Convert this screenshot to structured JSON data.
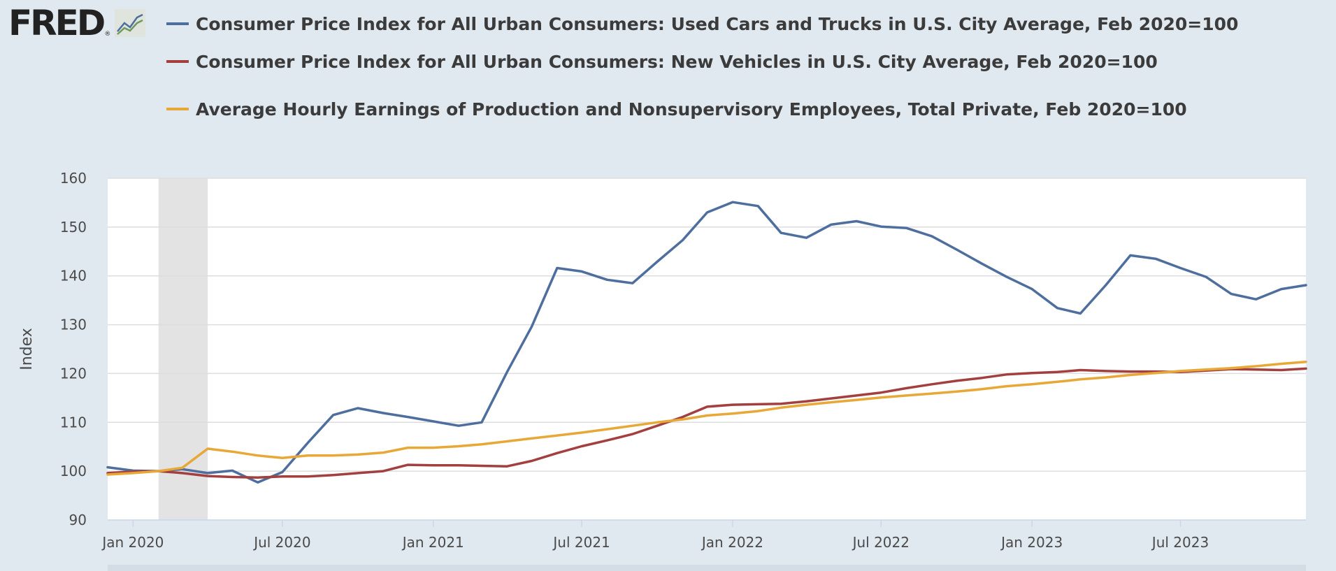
{
  "logo": {
    "text": "FRED",
    "reg": "®"
  },
  "colors": {
    "background": "#e1e9f0",
    "plot_bg": "#ffffff",
    "recession": "#e3e3e3",
    "grid": "#dddddd"
  },
  "chart_data": {
    "type": "line",
    "ylabel": "Index",
    "ylim": [
      90,
      160
    ],
    "yticks": [
      90,
      100,
      110,
      120,
      130,
      140,
      150,
      160
    ],
    "xlim": [
      "2019-12-01",
      "2023-12-01"
    ],
    "xticks": [
      {
        "date": "2020-01-01",
        "label": "Jan 2020"
      },
      {
        "date": "2020-07-01",
        "label": "Jul 2020"
      },
      {
        "date": "2021-01-01",
        "label": "Jan 2021"
      },
      {
        "date": "2021-07-01",
        "label": "Jul 2021"
      },
      {
        "date": "2022-01-01",
        "label": "Jan 2022"
      },
      {
        "date": "2022-07-01",
        "label": "Jul 2022"
      },
      {
        "date": "2023-01-01",
        "label": "Jan 2023"
      },
      {
        "date": "2023-07-01",
        "label": "Jul 2023"
      }
    ],
    "recession": {
      "start": "2020-02-01",
      "end": "2020-04-01"
    },
    "legend_position": "top",
    "x": [
      "2019-12",
      "2020-01",
      "2020-02",
      "2020-03",
      "2020-04",
      "2020-05",
      "2020-06",
      "2020-07",
      "2020-08",
      "2020-09",
      "2020-10",
      "2020-11",
      "2020-12",
      "2021-01",
      "2021-02",
      "2021-03",
      "2021-04",
      "2021-05",
      "2021-06",
      "2021-07",
      "2021-08",
      "2021-09",
      "2021-10",
      "2021-11",
      "2021-12",
      "2022-01",
      "2022-02",
      "2022-03",
      "2022-04",
      "2022-05",
      "2022-06",
      "2022-07",
      "2022-08",
      "2022-09",
      "2022-10",
      "2022-11",
      "2022-12",
      "2023-01",
      "2023-02",
      "2023-03",
      "2023-04",
      "2023-05",
      "2023-06",
      "2023-07",
      "2023-08",
      "2023-09",
      "2023-10",
      "2023-11",
      "2023-12"
    ],
    "series": [
      {
        "name": "Consumer Price Index for All Urban Consumers: Used Cars and Trucks in U.S. City Average, Feb 2020=100",
        "color": "#4e6e9e",
        "values": [
          100.8,
          100.1,
          100.0,
          100.4,
          99.6,
          100.1,
          97.7,
          99.8,
          105.8,
          111.5,
          112.9,
          111.9,
          111.1,
          110.2,
          109.3,
          110.0,
          120.3,
          129.6,
          141.6,
          140.9,
          139.2,
          138.5,
          142.9,
          147.3,
          153.0,
          155.1,
          154.3,
          148.8,
          147.8,
          150.5,
          151.2,
          150.1,
          149.8,
          148.1,
          145.4,
          142.5,
          139.8,
          137.3,
          133.4,
          132.3,
          138.1,
          144.2,
          143.5,
          141.6,
          139.8,
          136.3,
          135.2,
          137.3,
          138.1
        ]
      },
      {
        "name": "Consumer Price Index for All Urban Consumers: New Vehicles in U.S. City Average, Feb 2020=100",
        "color": "#a3403f",
        "values": [
          99.6,
          99.9,
          100.0,
          99.6,
          99.0,
          98.8,
          98.7,
          98.9,
          98.9,
          99.2,
          99.6,
          100.0,
          101.3,
          101.2,
          101.2,
          101.1,
          101.0,
          102.1,
          103.7,
          105.1,
          106.3,
          107.6,
          109.3,
          111.1,
          113.2,
          113.6,
          113.7,
          113.8,
          114.3,
          114.9,
          115.5,
          116.1,
          117.0,
          117.8,
          118.5,
          119.1,
          119.8,
          120.1,
          120.3,
          120.7,
          120.5,
          120.4,
          120.4,
          120.3,
          120.6,
          120.9,
          120.8,
          120.7,
          121.0
        ]
      },
      {
        "name": "Average Hourly Earnings of Production and Nonsupervisory Employees, Total Private, Feb 2020=100",
        "color": "#e8a838",
        "values": [
          99.3,
          99.6,
          100.0,
          100.7,
          104.6,
          104.0,
          103.2,
          102.7,
          103.2,
          103.2,
          103.4,
          103.8,
          104.8,
          104.8,
          105.1,
          105.5,
          106.1,
          106.7,
          107.3,
          107.9,
          108.6,
          109.3,
          110.0,
          110.6,
          111.4,
          111.8,
          112.3,
          113.0,
          113.6,
          114.1,
          114.6,
          115.1,
          115.5,
          115.9,
          116.3,
          116.8,
          117.4,
          117.8,
          118.3,
          118.8,
          119.2,
          119.7,
          120.1,
          120.5,
          120.8,
          121.1,
          121.5,
          122.0,
          122.4
        ]
      }
    ]
  }
}
